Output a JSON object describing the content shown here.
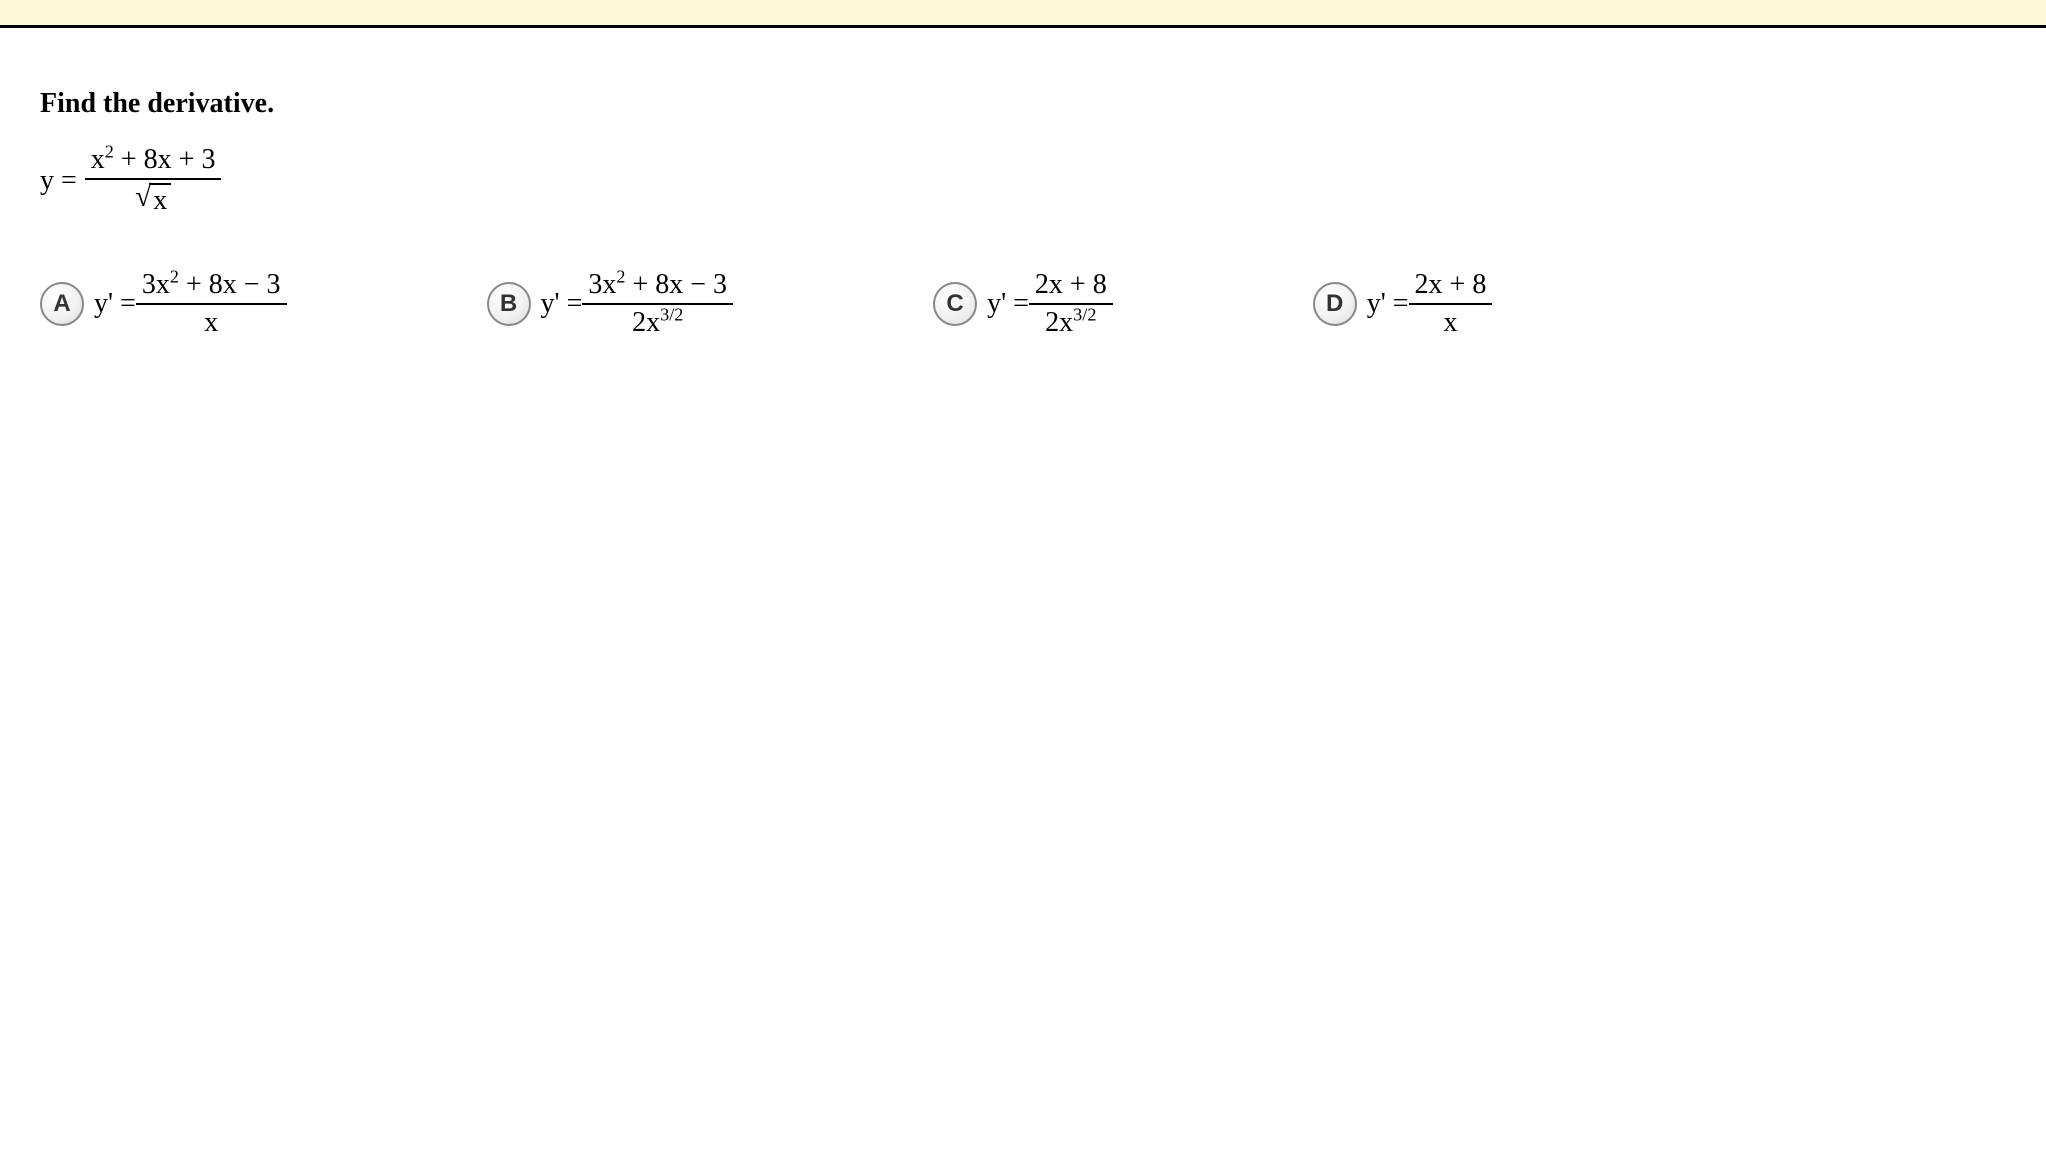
{
  "colors": {
    "topBarBg": "#fdf6d8",
    "topBarBorder": "#000000",
    "bodyBg": "#ffffff",
    "text": "#000000",
    "choiceCircleBorder": "#888888",
    "choiceCircleText": "#333333"
  },
  "typography": {
    "promptFontSize": 28,
    "equationFontSize": 28,
    "choiceLetterFontSize": 24,
    "fontFamily": "Georgia, Times New Roman, serif"
  },
  "question": {
    "prompt": "Find the derivative.",
    "equationPrefix": "y = ",
    "numerator": "x² + 8x + 3",
    "denominatorSqrtArg": "x"
  },
  "choices": [
    {
      "letter": "A",
      "prefix": "y' = ",
      "numerator": "3x² + 8x − 3",
      "denominator": "x"
    },
    {
      "letter": "B",
      "prefix": "y' = ",
      "numerator": "3x² + 8x − 3",
      "denominator": "2x³ᐟ²"
    },
    {
      "letter": "C",
      "prefix": "y' = ",
      "numerator": "2x + 8",
      "denominator": "2x³ᐟ²"
    },
    {
      "letter": "D",
      "prefix": "y' = ",
      "numerator": "2x + 8",
      "denominator": "x"
    }
  ]
}
